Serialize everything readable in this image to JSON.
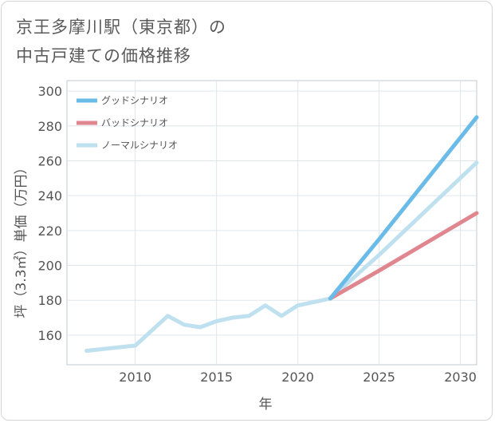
{
  "title": {
    "line1": "京王多摩川駅（東京都）の",
    "line2": "中古戸建ての価格推移"
  },
  "chart_data": {
    "type": "line",
    "title": "京王多摩川駅（東京都）の中古戸建ての価格推移",
    "xlabel": "年",
    "ylabel": "坪（3.3㎡）単価（万円）",
    "xlim": [
      2005.8,
      2031
    ],
    "ylim": [
      143,
      306
    ],
    "xticks": [
      2010,
      2015,
      2020,
      2025,
      2030
    ],
    "yticks": [
      160,
      180,
      200,
      220,
      240,
      260,
      280,
      300
    ],
    "grid": true,
    "legend_position": "top-left",
    "series": [
      {
        "name": "グッドシナリオ",
        "color": "#6bbbe9",
        "x": [
          2022,
          2025,
          2031
        ],
        "y": [
          181,
          215,
          285
        ]
      },
      {
        "name": "バッドシナリオ",
        "color": "#e0868f",
        "x": [
          2022,
          2025,
          2031
        ],
        "y": [
          181,
          197,
          230
        ]
      },
      {
        "name": "ノーマルシナリオ",
        "color": "#bfe0ef",
        "x": [
          2007,
          2010,
          2012,
          2013,
          2014,
          2015,
          2016,
          2017,
          2018,
          2019,
          2020,
          2021,
          2022,
          2025,
          2031
        ],
        "y": [
          151,
          154,
          171,
          166,
          164.5,
          168,
          170,
          171,
          177,
          171,
          177,
          179,
          181,
          206,
          259
        ]
      }
    ]
  }
}
